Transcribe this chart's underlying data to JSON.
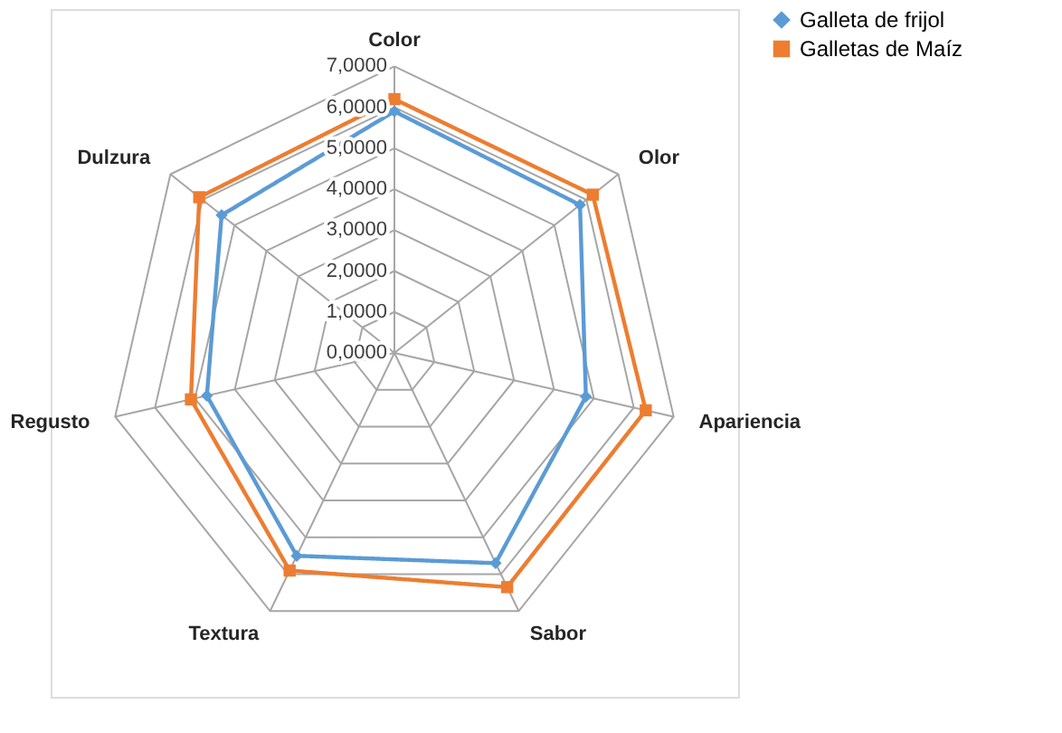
{
  "chart_data": {
    "type": "radar",
    "categories": [
      "Color",
      "Olor",
      "Apariencia",
      "Sabor",
      "Textura",
      "Regusto",
      "Dulzura"
    ],
    "series": [
      {
        "name": "Galleta de frijol",
        "color": "#5b9bd5",
        "marker": "diamond",
        "values": [
          5.9,
          5.8,
          4.8,
          5.7,
          5.5,
          4.7,
          5.4
        ]
      },
      {
        "name": "Galletas de Maíz",
        "color": "#ed7d31",
        "marker": "square",
        "values": [
          6.2,
          6.2,
          6.3,
          6.35,
          5.9,
          5.1,
          6.1
        ]
      }
    ],
    "ylim": [
      0,
      7
    ],
    "yticks": [
      {
        "value": 0,
        "label": "0,0000"
      },
      {
        "value": 1,
        "label": "1,0000"
      },
      {
        "value": 2,
        "label": "2,0000"
      },
      {
        "value": 3,
        "label": "3,0000"
      },
      {
        "value": 4,
        "label": "4,0000"
      },
      {
        "value": 5,
        "label": "5,0000"
      },
      {
        "value": 6,
        "label": "6,0000"
      },
      {
        "value": 7,
        "label": "7,0000"
      }
    ],
    "grid": true,
    "legend": "right",
    "line_style": "solid"
  }
}
